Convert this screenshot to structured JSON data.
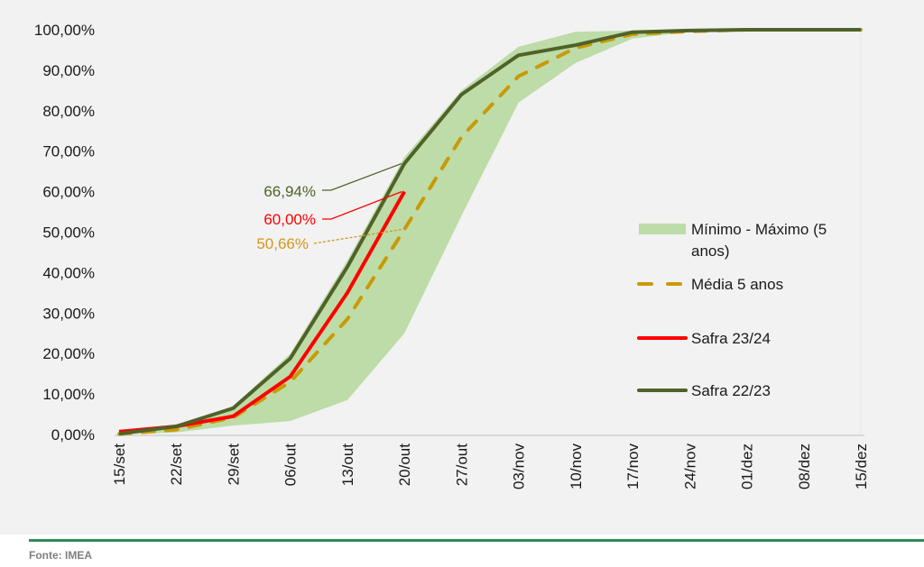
{
  "chart_data": {
    "type": "line",
    "title": "",
    "xlabel": "",
    "ylabel": "",
    "ylim": [
      0,
      100
    ],
    "y_ticks": [
      "0,00%",
      "10,00%",
      "20,00%",
      "30,00%",
      "40,00%",
      "50,00%",
      "60,00%",
      "70,00%",
      "80,00%",
      "90,00%",
      "100,00%"
    ],
    "y_tick_values": [
      0,
      10,
      20,
      30,
      40,
      50,
      60,
      70,
      80,
      90,
      100
    ],
    "categories": [
      "15/set",
      "22/set",
      "29/set",
      "06/out",
      "13/out",
      "20/out",
      "27/out",
      "03/nov",
      "10/nov",
      "17/nov",
      "24/nov",
      "01/dez",
      "08/dez",
      "15/dez"
    ],
    "band": {
      "name": "Mínimo - Máximo (5 anos)",
      "color": "#bddca8",
      "min": [
        0,
        0.5,
        2.2,
        3.3,
        8.5,
        25.0,
        54.0,
        82.0,
        91.8,
        97.8,
        99.5,
        100,
        100,
        100
      ],
      "max": [
        0.5,
        2.2,
        7.0,
        20.0,
        43.0,
        68.5,
        85.0,
        95.8,
        99.5,
        99.8,
        100,
        100,
        100,
        100
      ]
    },
    "series": [
      {
        "name": "Média 5 anos",
        "color": "#c99a06",
        "style": "dashed",
        "values": [
          0.1,
          1.2,
          4.2,
          13.0,
          28.5,
          50.66,
          73.5,
          88.5,
          95.5,
          98.9,
          99.6,
          100,
          100,
          100
        ]
      },
      {
        "name": "Safra 23/24",
        "color": "#ff0000",
        "style": "solid",
        "values": [
          0.7,
          2.0,
          4.5,
          14.3,
          35.0,
          60.0,
          null,
          null,
          null,
          null,
          null,
          null,
          null,
          null
        ]
      },
      {
        "name": "Safra 22/23",
        "color": "#4f6228",
        "style": "solid",
        "values": [
          0.2,
          2.0,
          6.5,
          18.8,
          41.4,
          66.94,
          84.0,
          93.7,
          96.2,
          99.4,
          99.8,
          100,
          100,
          100
        ]
      }
    ],
    "annotations": [
      {
        "text": "66,94%",
        "color": "#4f6228",
        "series": "Safra 22/23",
        "category": "20/out",
        "value": 66.94
      },
      {
        "text": "60,00%",
        "color": "#ff0000",
        "series": "Safra 23/24",
        "category": "20/out",
        "value": 60.0
      },
      {
        "text": "50,66%",
        "color": "#d4961e",
        "series": "Média 5 anos",
        "category": "20/out",
        "value": 50.66
      }
    ],
    "legend": {
      "position": "right",
      "entries": [
        {
          "label_line1": "Mínimo - Máximo (5",
          "label_line2": "anos)",
          "kind": "band"
        },
        {
          "label_line1": "Média 5 anos",
          "kind": "dashed"
        },
        {
          "label_line1": "Safra 23/24",
          "kind": "red"
        },
        {
          "label_line1": "Safra 22/23",
          "kind": "green"
        }
      ]
    },
    "grid": false
  },
  "source": "Fonte: IMEA"
}
